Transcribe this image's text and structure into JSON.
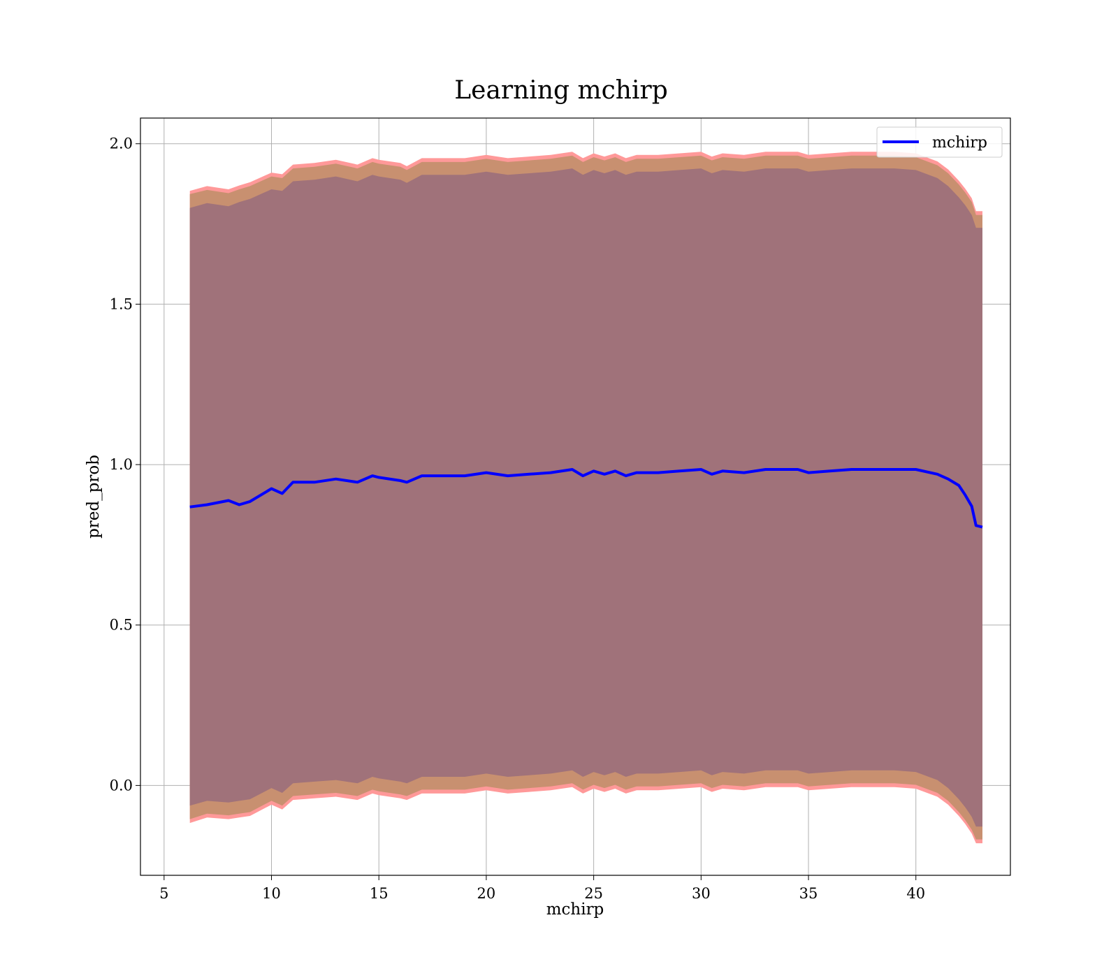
{
  "chart_data": {
    "type": "area",
    "title": "Learning mchirp",
    "xlabel": "mchirp",
    "ylabel": "pred_prob",
    "xlim": [
      3.9,
      44.4
    ],
    "ylim": [
      -0.28,
      2.08
    ],
    "xticks": [
      5,
      10,
      15,
      20,
      25,
      30,
      35,
      40
    ],
    "yticks": [
      0.0,
      0.5,
      1.0,
      1.5,
      2.0
    ],
    "xtick_labels": [
      "5",
      "10",
      "15",
      "20",
      "25",
      "30",
      "35",
      "40"
    ],
    "ytick_labels": [
      "0.0",
      "0.5",
      "1.0",
      "1.5",
      "2.0"
    ],
    "grid": true,
    "legend": {
      "placement": "top-right",
      "entries": [
        "mchirp"
      ]
    },
    "colors": {
      "line": "#0000ff",
      "band_outer": "#ff9999",
      "band_middle": "#c89070",
      "band_inner": "#a0727a"
    },
    "x": [
      6.2,
      7,
      8,
      8.5,
      9,
      10,
      10.5,
      11,
      12,
      13,
      14,
      14.7,
      15,
      16,
      16.3,
      17,
      18,
      19,
      20,
      21,
      22,
      23,
      24,
      24.5,
      25,
      25.5,
      26,
      26.5,
      27,
      28,
      29,
      30,
      30.5,
      31,
      32,
      33,
      34,
      34.5,
      35,
      36,
      37,
      38,
      39,
      40,
      41,
      41.5,
      42,
      42.3,
      42.6,
      42.8,
      43.1
    ],
    "series": [
      {
        "name": "mchirp",
        "role": "line",
        "values": [
          0.868,
          0.875,
          0.888,
          0.875,
          0.885,
          0.925,
          0.91,
          0.945,
          0.945,
          0.955,
          0.945,
          0.965,
          0.96,
          0.95,
          0.945,
          0.965,
          0.965,
          0.965,
          0.975,
          0.965,
          0.97,
          0.975,
          0.985,
          0.965,
          0.98,
          0.97,
          0.98,
          0.965,
          0.975,
          0.975,
          0.98,
          0.985,
          0.97,
          0.98,
          0.975,
          0.985,
          0.985,
          0.985,
          0.975,
          0.98,
          0.985,
          0.985,
          0.985,
          0.985,
          0.97,
          0.955,
          0.935,
          0.905,
          0.87,
          0.81,
          0.805
        ]
      },
      {
        "name": "",
        "role": "band_outer",
        "upper": [
          1.853,
          1.868,
          1.858,
          1.87,
          1.88,
          1.91,
          1.905,
          1.935,
          1.94,
          1.95,
          1.935,
          1.955,
          1.95,
          1.94,
          1.93,
          1.955,
          1.955,
          1.955,
          1.965,
          1.955,
          1.96,
          1.965,
          1.975,
          1.955,
          1.97,
          1.96,
          1.97,
          1.955,
          1.965,
          1.965,
          1.97,
          1.975,
          1.96,
          1.97,
          1.965,
          1.975,
          1.975,
          1.975,
          1.965,
          1.97,
          1.975,
          1.975,
          1.975,
          1.97,
          1.945,
          1.92,
          1.885,
          1.86,
          1.83,
          1.79,
          1.79
        ],
        "lower": [
          -0.117,
          -0.1,
          -0.105,
          -0.1,
          -0.095,
          -0.06,
          -0.075,
          -0.045,
          -0.04,
          -0.035,
          -0.045,
          -0.025,
          -0.03,
          -0.04,
          -0.045,
          -0.025,
          -0.025,
          -0.025,
          -0.015,
          -0.025,
          -0.02,
          -0.015,
          -0.005,
          -0.025,
          -0.01,
          -0.02,
          -0.01,
          -0.025,
          -0.015,
          -0.015,
          -0.01,
          -0.005,
          -0.02,
          -0.01,
          -0.015,
          -0.005,
          -0.005,
          -0.005,
          -0.015,
          -0.01,
          -0.005,
          -0.005,
          -0.005,
          -0.01,
          -0.035,
          -0.06,
          -0.095,
          -0.12,
          -0.15,
          -0.18,
          -0.18
        ]
      },
      {
        "name": "",
        "role": "band_middle",
        "upper": [
          1.843,
          1.856,
          1.846,
          1.858,
          1.868,
          1.898,
          1.893,
          1.923,
          1.928,
          1.938,
          1.923,
          1.943,
          1.938,
          1.928,
          1.918,
          1.943,
          1.943,
          1.943,
          1.953,
          1.943,
          1.948,
          1.953,
          1.963,
          1.943,
          1.958,
          1.948,
          1.958,
          1.943,
          1.953,
          1.953,
          1.958,
          1.963,
          1.948,
          1.958,
          1.953,
          1.963,
          1.963,
          1.963,
          1.953,
          1.958,
          1.963,
          1.963,
          1.963,
          1.958,
          1.933,
          1.908,
          1.873,
          1.848,
          1.818,
          1.778,
          1.778
        ],
        "lower": [
          -0.105,
          -0.088,
          -0.093,
          -0.088,
          -0.083,
          -0.048,
          -0.063,
          -0.033,
          -0.028,
          -0.023,
          -0.033,
          -0.013,
          -0.018,
          -0.028,
          -0.033,
          -0.013,
          -0.013,
          -0.013,
          -0.003,
          -0.013,
          -0.008,
          -0.003,
          0.007,
          -0.013,
          0.002,
          -0.008,
          0.002,
          -0.013,
          -0.003,
          -0.003,
          0.002,
          0.007,
          -0.008,
          0.002,
          -0.003,
          0.007,
          0.007,
          0.007,
          -0.003,
          0.002,
          0.007,
          0.007,
          0.007,
          0.002,
          -0.023,
          -0.048,
          -0.083,
          -0.108,
          -0.138,
          -0.168,
          -0.168
        ]
      },
      {
        "name": "",
        "role": "band_inner",
        "upper": [
          1.8,
          1.815,
          1.805,
          1.818,
          1.828,
          1.858,
          1.853,
          1.883,
          1.888,
          1.898,
          1.883,
          1.903,
          1.898,
          1.888,
          1.878,
          1.903,
          1.903,
          1.903,
          1.913,
          1.903,
          1.908,
          1.913,
          1.923,
          1.903,
          1.918,
          1.908,
          1.918,
          1.903,
          1.913,
          1.913,
          1.918,
          1.923,
          1.908,
          1.918,
          1.913,
          1.923,
          1.923,
          1.923,
          1.913,
          1.918,
          1.923,
          1.923,
          1.923,
          1.918,
          1.893,
          1.868,
          1.833,
          1.808,
          1.778,
          1.738,
          1.738
        ],
        "lower": [
          -0.063,
          -0.048,
          -0.053,
          -0.048,
          -0.043,
          -0.008,
          -0.023,
          0.007,
          0.012,
          0.017,
          0.007,
          0.027,
          0.022,
          0.012,
          0.007,
          0.027,
          0.027,
          0.027,
          0.037,
          0.027,
          0.032,
          0.037,
          0.047,
          0.027,
          0.042,
          0.032,
          0.042,
          0.027,
          0.037,
          0.037,
          0.042,
          0.047,
          0.032,
          0.042,
          0.037,
          0.047,
          0.047,
          0.047,
          0.037,
          0.042,
          0.047,
          0.047,
          0.047,
          0.042,
          0.017,
          -0.008,
          -0.043,
          -0.068,
          -0.098,
          -0.128,
          -0.128
        ]
      }
    ]
  }
}
